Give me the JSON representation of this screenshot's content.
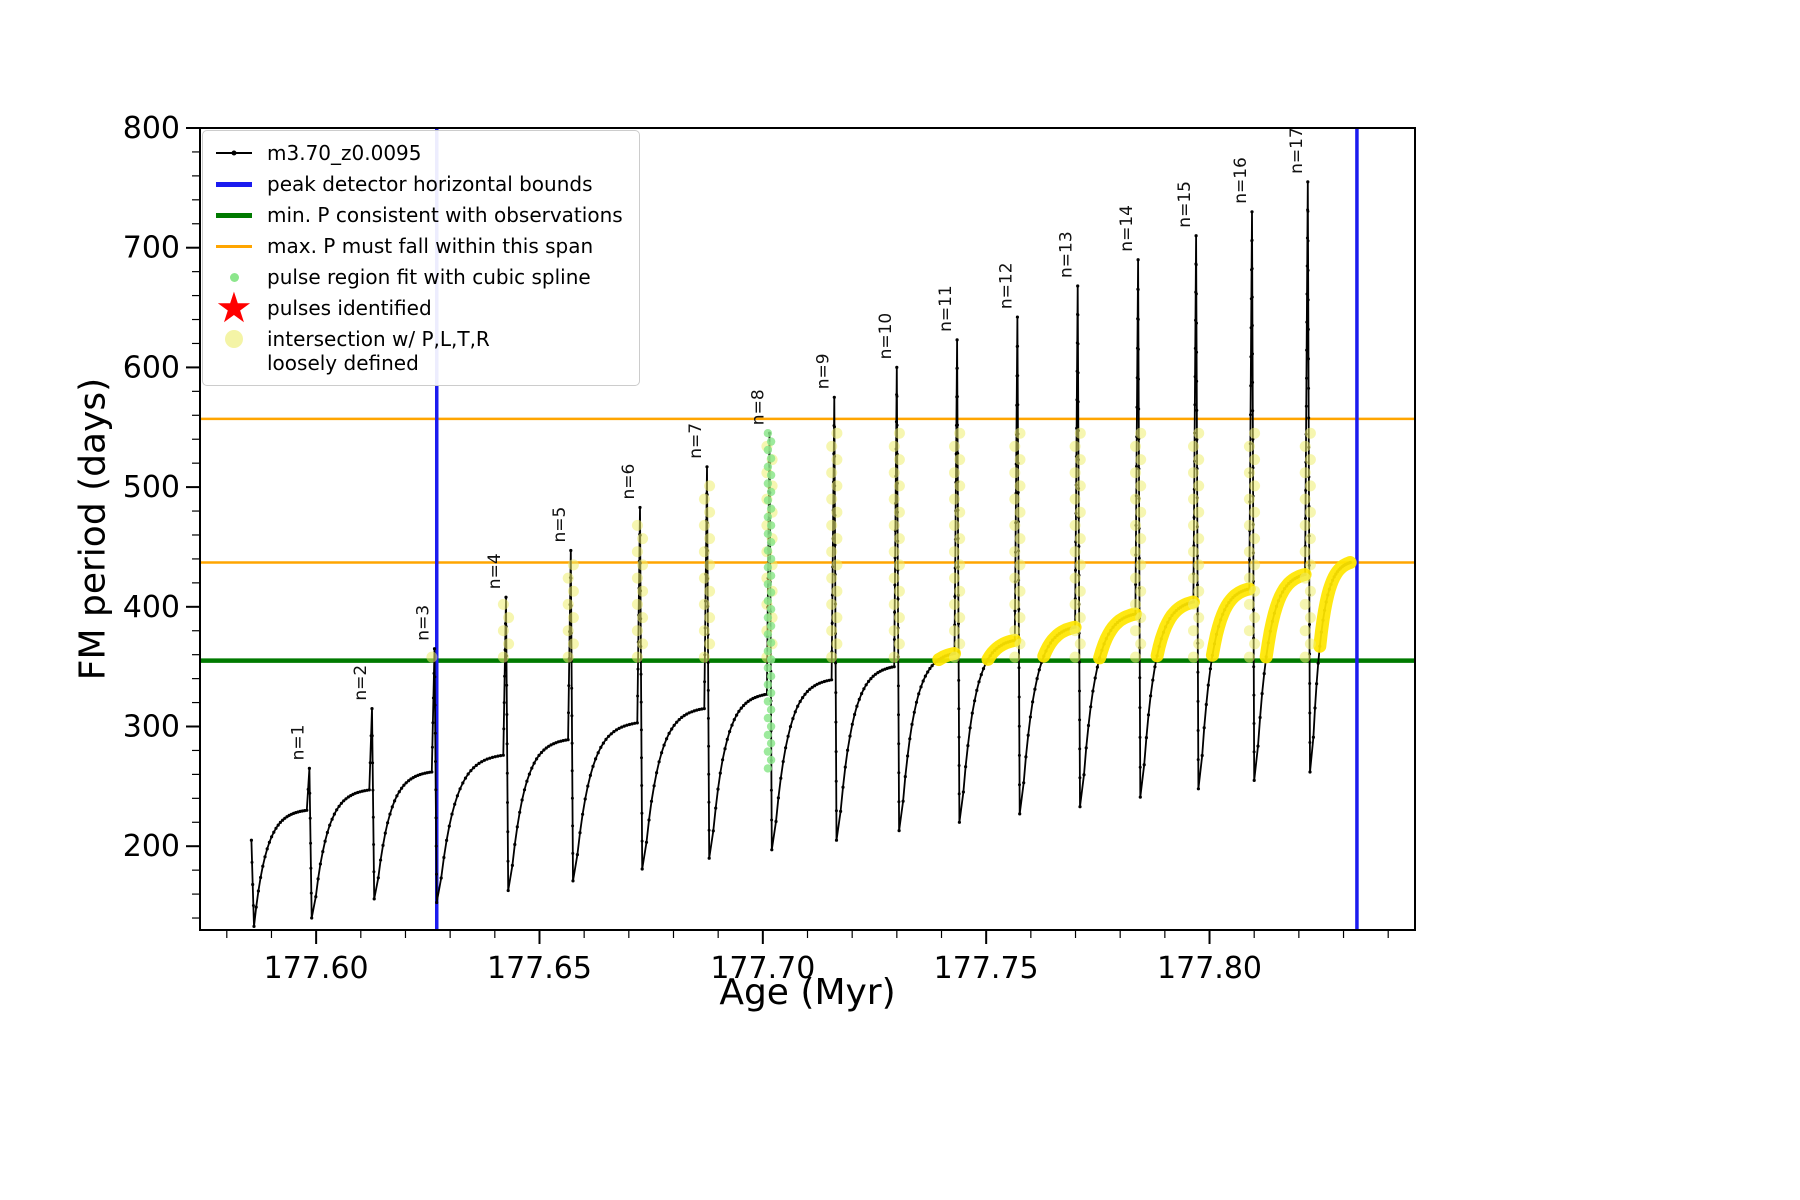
{
  "colors": {
    "series": "#000000",
    "bounds": "#1b1bef",
    "min_line": "#007a00",
    "span_line": "#ffa500",
    "spline_dot": "#8ce68c",
    "pulse_star": "#ff0000",
    "intersection_dot": "#efef70",
    "highlight": "#ffe600"
  },
  "legend": {
    "items": [
      {
        "label": "m3.70_z0.0095"
      },
      {
        "label": "peak detector horizontal bounds"
      },
      {
        "label": "min. P consistent with observations"
      },
      {
        "label": "max. P must fall within this span"
      },
      {
        "label": "pulse region fit with cubic spline"
      },
      {
        "label": "pulses identified"
      },
      {
        "label": "intersection w/ P,L,T,R\nloosely defined"
      }
    ]
  },
  "chart_data": {
    "type": "line",
    "series_name": "m3.70_z0.0095",
    "xlabel": "Age (Myr)",
    "ylabel": "FM period (days)",
    "xlim": [
      177.574,
      177.846
    ],
    "ylim": [
      130,
      800
    ],
    "x_major_ticks": [
      177.6,
      177.65,
      177.7,
      177.75,
      177.8
    ],
    "x_major_labels": [
      "177.60",
      "177.65",
      "177.70",
      "177.75",
      "177.80"
    ],
    "x_minor_step": 0.01,
    "y_major_ticks": [
      200,
      300,
      400,
      500,
      600,
      700,
      800
    ],
    "y_minor_step": 20,
    "peak_detector_bounds_x": [
      177.627,
      177.833
    ],
    "min_P_consistent": 355,
    "max_P_span": [
      437,
      557
    ],
    "highlight_above": 355,
    "start_points": [
      [
        177.5855,
        205
      ],
      [
        177.5858,
        168
      ],
      [
        177.5861,
        133
      ]
    ],
    "pulses": [
      {
        "n": 1,
        "label": "n=1",
        "peak_x": 177.5985,
        "peak_y": 265,
        "pre_peak_y": 230,
        "post_dip_y": 140
      },
      {
        "n": 2,
        "label": "n=2",
        "peak_x": 177.6125,
        "peak_y": 315,
        "pre_peak_y": 247,
        "post_dip_y": 156
      },
      {
        "n": 3,
        "label": "n=3",
        "peak_x": 177.6265,
        "peak_y": 365,
        "pre_peak_y": 262,
        "post_dip_y": 153
      },
      {
        "n": 4,
        "label": "n=4",
        "peak_x": 177.6425,
        "peak_y": 408,
        "pre_peak_y": 276,
        "post_dip_y": 163
      },
      {
        "n": 5,
        "label": "n=5",
        "peak_x": 177.657,
        "peak_y": 447,
        "pre_peak_y": 289,
        "post_dip_y": 171
      },
      {
        "n": 6,
        "label": "n=6",
        "peak_x": 177.6725,
        "peak_y": 483,
        "pre_peak_y": 303,
        "post_dip_y": 181
      },
      {
        "n": 7,
        "label": "n=7",
        "peak_x": 177.6875,
        "peak_y": 517,
        "pre_peak_y": 315,
        "post_dip_y": 190
      },
      {
        "n": 8,
        "label": "n=8",
        "peak_x": 177.7015,
        "peak_y": 545,
        "pre_peak_y": 327,
        "post_dip_y": 197
      },
      {
        "n": 9,
        "label": "n=9",
        "peak_x": 177.716,
        "peak_y": 575,
        "pre_peak_y": 339,
        "post_dip_y": 205
      },
      {
        "n": 10,
        "label": "n=10",
        "peak_x": 177.73,
        "peak_y": 600,
        "pre_peak_y": 350,
        "post_dip_y": 213
      },
      {
        "n": 11,
        "label": "n=11",
        "peak_x": 177.7435,
        "peak_y": 623,
        "pre_peak_y": 361,
        "post_dip_y": 220
      },
      {
        "n": 12,
        "label": "n=12",
        "peak_x": 177.757,
        "peak_y": 642,
        "pre_peak_y": 372,
        "post_dip_y": 227
      },
      {
        "n": 13,
        "label": "n=13",
        "peak_x": 177.7705,
        "peak_y": 668,
        "pre_peak_y": 383,
        "post_dip_y": 233
      },
      {
        "n": 14,
        "label": "n=14",
        "peak_x": 177.784,
        "peak_y": 690,
        "pre_peak_y": 394,
        "post_dip_y": 241
      },
      {
        "n": 15,
        "label": "n=15",
        "peak_x": 177.797,
        "peak_y": 710,
        "pre_peak_y": 404,
        "post_dip_y": 248
      },
      {
        "n": 16,
        "label": "n=16",
        "peak_x": 177.8095,
        "peak_y": 730,
        "pre_peak_y": 415,
        "post_dip_y": 255
      },
      {
        "n": 17,
        "label": "n=17",
        "peak_x": 177.822,
        "peak_y": 755,
        "pre_peak_y": 427,
        "post_dip_y": 262
      }
    ],
    "tail": {
      "end_x": 177.8315,
      "end_y": 437
    },
    "spline_pulse_n": 8,
    "spline_y_range": [
      265,
      545
    ],
    "intersection_columns": {
      "pulse_n_from": 3,
      "pulse_n_to": 17,
      "y_min": 355,
      "y_max": 548
    }
  }
}
